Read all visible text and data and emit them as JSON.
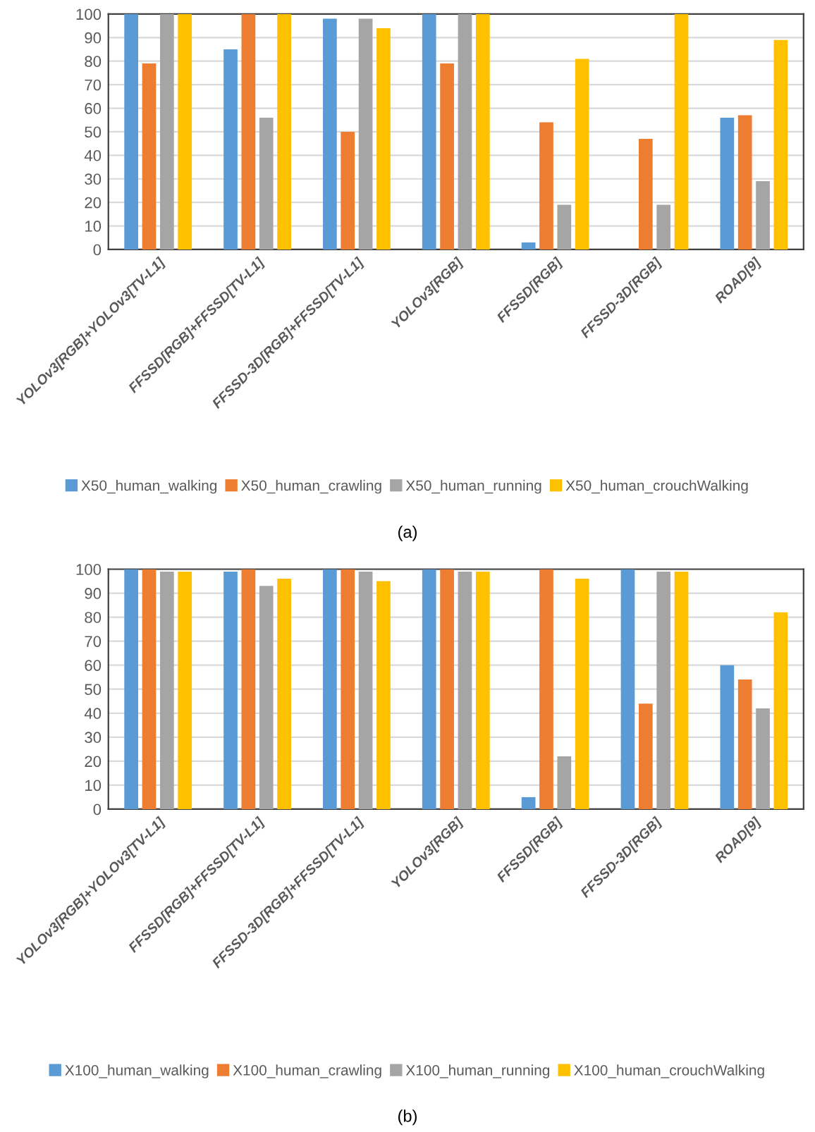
{
  "chart_data": [
    {
      "type": "bar",
      "categories": [
        "YOLOv3[RGB]+YOLOv3[TV-L1]",
        "FFSSD[RGB]+FFSSD[TV-L1]",
        "FFSSD-3D[RGB]+FFSSD[TV-L1]",
        "YOLOv3[RGB]",
        "FFSSD[RGB]",
        "FFSSD-3D[RGB]",
        "ROAD[9]"
      ],
      "series": [
        {
          "name": "X50_human_walking",
          "color": "#5b9bd5",
          "values": [
            100,
            85,
            98,
            100,
            3,
            0,
            56
          ]
        },
        {
          "name": "X50_human_crawling",
          "color": "#ed7d31",
          "values": [
            79,
            100,
            50,
            79,
            54,
            47,
            57
          ]
        },
        {
          "name": "X50_human_running",
          "color": "#a5a5a5",
          "values": [
            100,
            56,
            98,
            100,
            19,
            19,
            29
          ]
        },
        {
          "name": "X50_human_crouchWalking",
          "color": "#ffc000",
          "values": [
            100,
            100,
            94,
            100,
            81,
            100,
            89
          ]
        }
      ],
      "ylim": [
        0,
        100
      ],
      "yticks": [
        0,
        10,
        20,
        30,
        40,
        50,
        60,
        70,
        80,
        90,
        100
      ],
      "grid": "y",
      "legend": "bottom",
      "annotations": [
        "(a)"
      ]
    },
    {
      "type": "bar",
      "categories": [
        "YOLOv3[RGB]+YOLOv3[TV-L1]",
        "FFSSD[RGB]+FFSSD[TV-L1]",
        "FFSSD-3D[RGB]+FFSSD[TV-L1]",
        "YOLOv3[RGB]",
        "FFSSD[RGB]",
        "FFSSD-3D[RGB]",
        "ROAD[9]"
      ],
      "series": [
        {
          "name": "X100_human_walking",
          "color": "#5b9bd5",
          "values": [
            100,
            99,
            100,
            100,
            5,
            100,
            60
          ]
        },
        {
          "name": "X100_human_crawling",
          "color": "#ed7d31",
          "values": [
            100,
            100,
            100,
            100,
            100,
            44,
            54
          ]
        },
        {
          "name": "X100_human_running",
          "color": "#a5a5a5",
          "values": [
            99,
            93,
            99,
            99,
            22,
            99,
            42
          ]
        },
        {
          "name": "X100_human_crouchWalking",
          "color": "#ffc000",
          "values": [
            99,
            96,
            95,
            99,
            96,
            99,
            82
          ]
        }
      ],
      "ylim": [
        0,
        100
      ],
      "yticks": [
        0,
        10,
        20,
        30,
        40,
        50,
        60,
        70,
        80,
        90,
        100
      ],
      "grid": "y",
      "legend": "bottom",
      "annotations": [
        "(b)"
      ]
    }
  ]
}
